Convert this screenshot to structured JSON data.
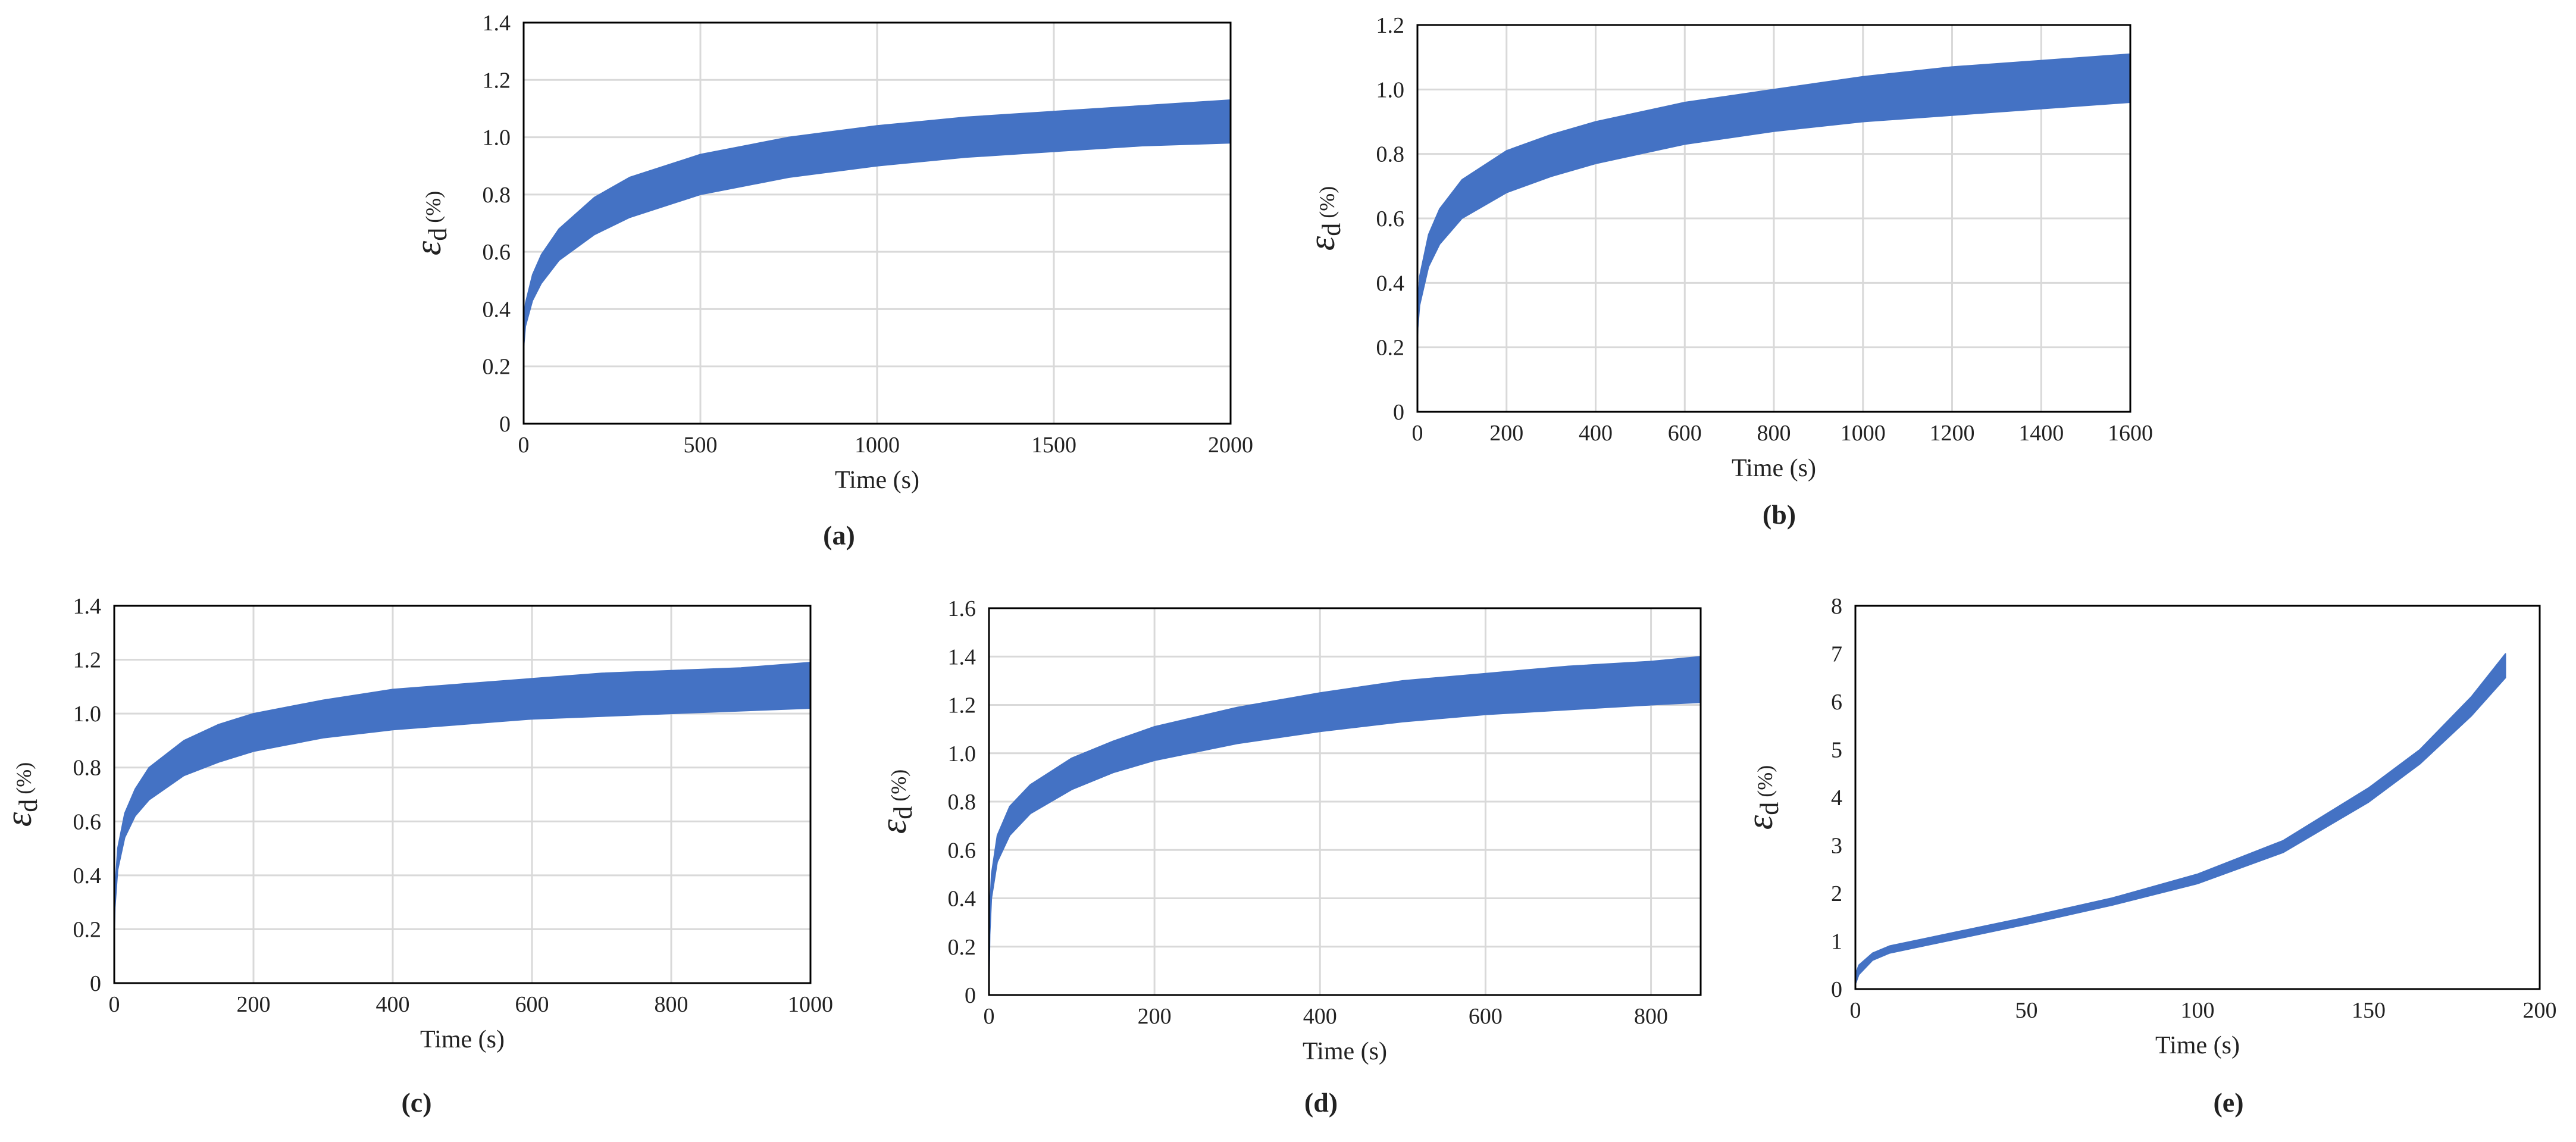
{
  "figure": {
    "band_color": "#4472C4",
    "grid_color": "#D9D9D9"
  },
  "chart_data": [
    {
      "type": "area",
      "panel_label": "(a)",
      "title": "",
      "xlabel": "Time (s)",
      "ylabel": {
        "symbol": "ε",
        "subscript": "d",
        "unit": "(%)"
      },
      "xlim": [
        0,
        2000
      ],
      "ylim": [
        0,
        1.4
      ],
      "xticks": [
        0,
        500,
        1000,
        1500,
        2000
      ],
      "xtick_labels": [
        "0",
        "500",
        "1000",
        "1500",
        "2000"
      ],
      "yticks": [
        0,
        0.2,
        0.4,
        0.6,
        0.8,
        1.0,
        1.2,
        1.4
      ],
      "ytick_labels": [
        "0",
        "0.2",
        "0.4",
        "0.6",
        "0.8",
        "1.0",
        "1.2",
        "1.4"
      ],
      "grid": true,
      "series": [
        {
          "name": "upper bound",
          "x": [
            0,
            1,
            5,
            25,
            50,
            100,
            200,
            300,
            500,
            750,
            1000,
            1250,
            1500,
            1750,
            2000
          ],
          "values": [
            0.3,
            0.36,
            0.42,
            0.52,
            0.59,
            0.68,
            0.79,
            0.86,
            0.94,
            1.0,
            1.04,
            1.07,
            1.09,
            1.11,
            1.13
          ]
        },
        {
          "name": "lower bound",
          "x": [
            0,
            1,
            5,
            25,
            50,
            100,
            200,
            300,
            500,
            750,
            1000,
            1250,
            1500,
            1750,
            2000
          ],
          "values": [
            0.22,
            0.28,
            0.34,
            0.43,
            0.49,
            0.57,
            0.66,
            0.72,
            0.8,
            0.86,
            0.9,
            0.93,
            0.95,
            0.97,
            0.98
          ]
        }
      ]
    },
    {
      "type": "area",
      "panel_label": "(b)",
      "title": "",
      "xlabel": "Time (s)",
      "ylabel": {
        "symbol": "ε",
        "subscript": "d",
        "unit": "(%)"
      },
      "xlim": [
        0,
        1600
      ],
      "ylim": [
        0,
        1.2
      ],
      "xticks": [
        0,
        200,
        400,
        600,
        800,
        1000,
        1200,
        1400,
        1600
      ],
      "xtick_labels": [
        "0",
        "200",
        "400",
        "600",
        "800",
        "1000",
        "1200",
        "1400",
        "1600"
      ],
      "yticks": [
        0,
        0.2,
        0.4,
        0.6,
        0.8,
        1.0,
        1.2
      ],
      "ytick_labels": [
        "0",
        "0.2",
        "0.4",
        "0.6",
        "0.8",
        "1.0",
        "1.2"
      ],
      "grid": true,
      "series": [
        {
          "name": "upper bound",
          "x": [
            0,
            1,
            5,
            25,
            50,
            100,
            200,
            300,
            400,
            600,
            800,
            1000,
            1200,
            1400,
            1600
          ],
          "values": [
            0.25,
            0.33,
            0.42,
            0.55,
            0.63,
            0.72,
            0.81,
            0.86,
            0.9,
            0.96,
            1.0,
            1.04,
            1.07,
            1.09,
            1.11
          ]
        },
        {
          "name": "lower bound",
          "x": [
            0,
            1,
            5,
            25,
            50,
            100,
            200,
            300,
            400,
            600,
            800,
            1000,
            1200,
            1400,
            1600
          ],
          "values": [
            0.18,
            0.26,
            0.33,
            0.45,
            0.52,
            0.6,
            0.68,
            0.73,
            0.77,
            0.83,
            0.87,
            0.9,
            0.92,
            0.94,
            0.96
          ]
        }
      ]
    },
    {
      "type": "area",
      "panel_label": "(c)",
      "title": "",
      "xlabel": "Time (s)",
      "ylabel": {
        "symbol": "ε",
        "subscript": "d",
        "unit": "(%)"
      },
      "xlim": [
        0,
        1000
      ],
      "ylim": [
        0,
        1.4
      ],
      "xticks": [
        0,
        200,
        400,
        600,
        800,
        1000
      ],
      "xtick_labels": [
        "0",
        "200",
        "400",
        "600",
        "800",
        "1000"
      ],
      "yticks": [
        0,
        0.2,
        0.4,
        0.6,
        0.8,
        1.0,
        1.2,
        1.4
      ],
      "ytick_labels": [
        "0",
        "0.2",
        "0.4",
        "0.6",
        "0.8",
        "1.0",
        "1.2",
        "1.4"
      ],
      "grid": true,
      "series": [
        {
          "name": "upper bound",
          "x": [
            0,
            1,
            5,
            15,
            30,
            50,
            100,
            150,
            200,
            300,
            400,
            500,
            600,
            700,
            800,
            900,
            1000
          ],
          "values": [
            0.2,
            0.35,
            0.5,
            0.63,
            0.72,
            0.8,
            0.9,
            0.96,
            1.0,
            1.05,
            1.09,
            1.11,
            1.13,
            1.15,
            1.16,
            1.17,
            1.19
          ]
        },
        {
          "name": "lower bound",
          "x": [
            0,
            1,
            5,
            15,
            30,
            50,
            100,
            150,
            200,
            300,
            400,
            500,
            600,
            700,
            800,
            900,
            1000
          ],
          "values": [
            0.15,
            0.28,
            0.42,
            0.54,
            0.62,
            0.68,
            0.77,
            0.82,
            0.86,
            0.91,
            0.94,
            0.96,
            0.98,
            0.99,
            1.0,
            1.01,
            1.02
          ]
        }
      ]
    },
    {
      "type": "area",
      "panel_label": "(d)",
      "title": "",
      "xlabel": "Time (s)",
      "ylabel": {
        "symbol": "ε",
        "subscript": "d",
        "unit": "(%)"
      },
      "xlim": [
        0,
        860
      ],
      "ylim": [
        0,
        1.6
      ],
      "xticks": [
        0,
        200,
        400,
        600,
        800
      ],
      "xtick_labels": [
        "0",
        "200",
        "400",
        "600",
        "800"
      ],
      "yticks": [
        0,
        0.2,
        0.4,
        0.6,
        0.8,
        1.0,
        1.2,
        1.4,
        1.6
      ],
      "ytick_labels": [
        "0",
        "0.2",
        "0.4",
        "0.6",
        "0.8",
        "1.0",
        "1.2",
        "1.4",
        "1.6"
      ],
      "grid": true,
      "series": [
        {
          "name": "upper bound",
          "x": [
            0,
            1,
            3,
            10,
            25,
            50,
            100,
            150,
            200,
            300,
            400,
            500,
            600,
            700,
            800,
            860
          ],
          "values": [
            0.05,
            0.35,
            0.5,
            0.66,
            0.78,
            0.87,
            0.98,
            1.05,
            1.11,
            1.19,
            1.25,
            1.3,
            1.33,
            1.36,
            1.38,
            1.4
          ]
        },
        {
          "name": "lower bound",
          "x": [
            0,
            1,
            3,
            10,
            25,
            50,
            100,
            150,
            200,
            300,
            400,
            500,
            600,
            700,
            800,
            860
          ],
          "values": [
            0.0,
            0.25,
            0.4,
            0.55,
            0.66,
            0.75,
            0.85,
            0.92,
            0.97,
            1.04,
            1.09,
            1.13,
            1.16,
            1.18,
            1.2,
            1.21
          ]
        }
      ]
    },
    {
      "type": "area",
      "panel_label": "(e)",
      "title": "",
      "xlabel": "Time (s)",
      "ylabel": {
        "symbol": "ε",
        "subscript": "d",
        "unit": "(%)"
      },
      "xlim": [
        0,
        200
      ],
      "ylim": [
        0,
        8
      ],
      "xticks": [
        0,
        50,
        100,
        150,
        200
      ],
      "xtick_labels": [
        "0",
        "50",
        "100",
        "150",
        "200"
      ],
      "yticks": [
        0,
        1,
        2,
        3,
        4,
        5,
        6,
        7,
        8
      ],
      "ytick_labels": [
        "0",
        "1",
        "2",
        "3",
        "4",
        "5",
        "6",
        "7",
        "8"
      ],
      "grid": false,
      "series": [
        {
          "name": "upper bound",
          "x": [
            0,
            1,
            5,
            10,
            20,
            30,
            50,
            75,
            100,
            125,
            150,
            165,
            180,
            190
          ],
          "values": [
            0.3,
            0.5,
            0.75,
            0.9,
            1.05,
            1.2,
            1.5,
            1.9,
            2.4,
            3.1,
            4.2,
            5.0,
            6.1,
            7.0
          ]
        },
        {
          "name": "lower bound",
          "x": [
            0,
            1,
            5,
            10,
            20,
            30,
            50,
            75,
            100,
            125,
            150,
            165,
            180,
            190
          ],
          "values": [
            0.1,
            0.3,
            0.6,
            0.75,
            0.9,
            1.05,
            1.35,
            1.75,
            2.2,
            2.85,
            3.9,
            4.7,
            5.7,
            6.5
          ]
        }
      ]
    }
  ]
}
